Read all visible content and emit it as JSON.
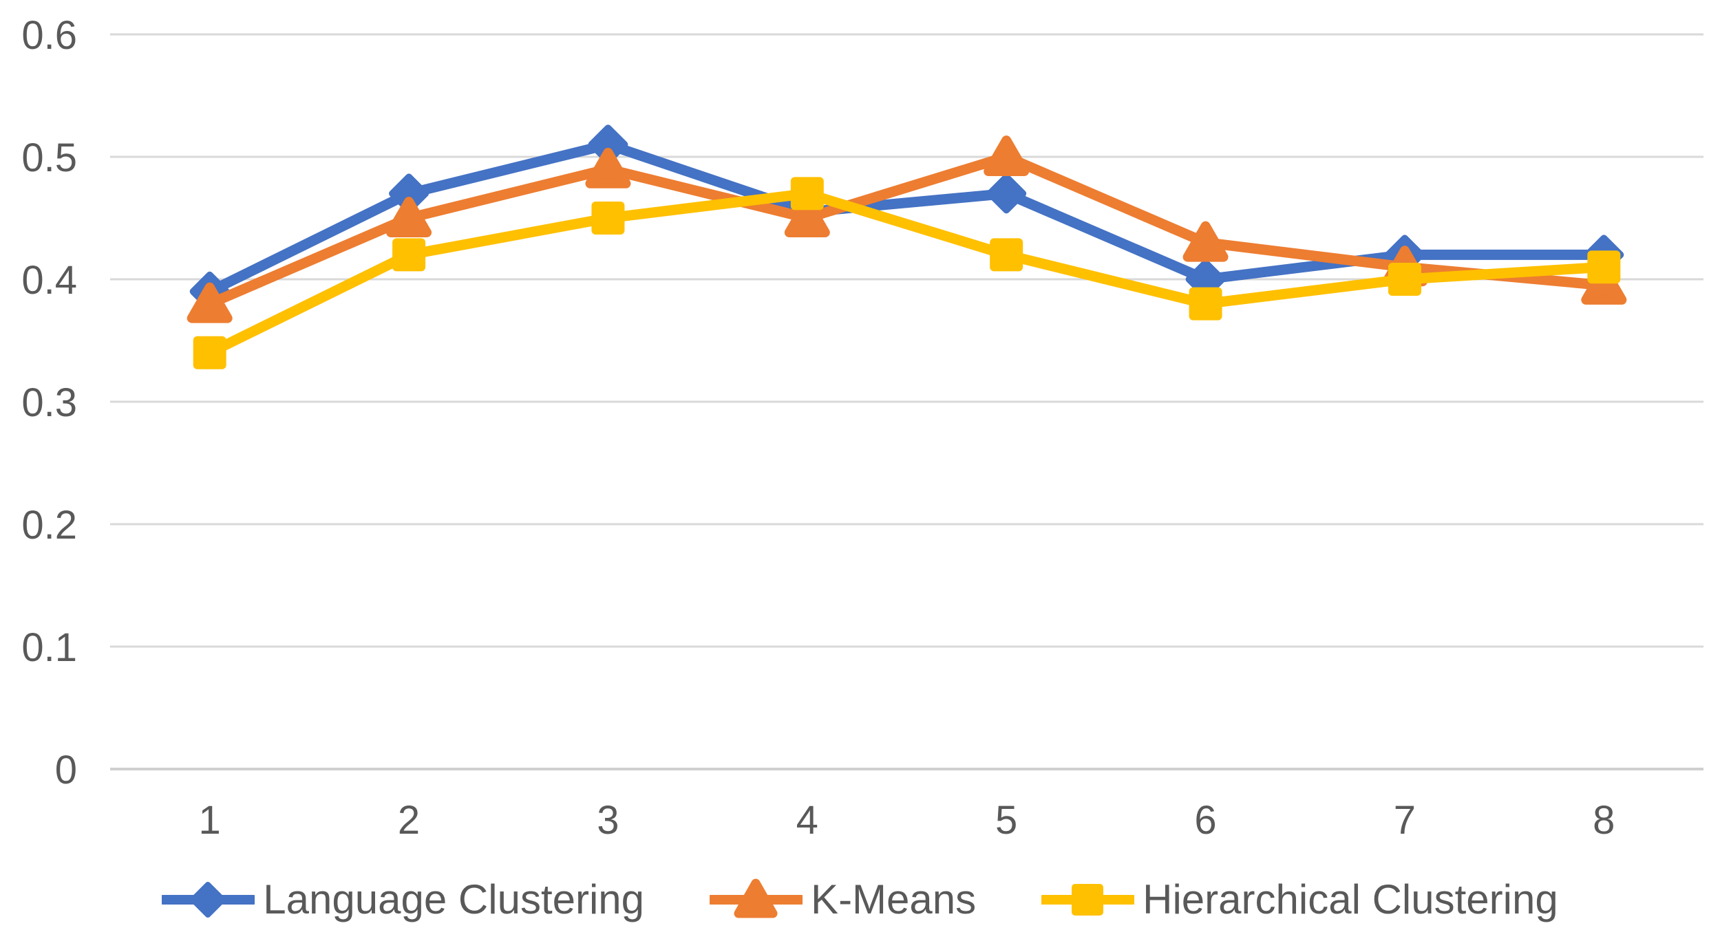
{
  "chart_data": {
    "type": "line",
    "title": "",
    "xlabel": "",
    "ylabel": "",
    "x_categories": [
      "1",
      "2",
      "3",
      "4",
      "5",
      "6",
      "7",
      "8"
    ],
    "y_ticks": [
      "0.6",
      "0.5",
      "0.4",
      "0.3",
      "0.2",
      "0.1",
      "0"
    ],
    "ylim": [
      0,
      0.6
    ],
    "grid": true,
    "legend_position": "bottom",
    "axis_text_color": "#595959",
    "gridline_color": "#D9D9D9",
    "zero_line_color": "#CFCFCF",
    "background_color": "#FFFFFF",
    "series": [
      {
        "name": "Language Clustering",
        "color": "#4472C4",
        "marker": "diamond-icon",
        "values": [
          0.39,
          0.47,
          0.51,
          0.455,
          0.47,
          0.4,
          0.42,
          0.42
        ]
      },
      {
        "name": "K-Means",
        "color": "#ED7D31",
        "marker": "triangle-icon",
        "values": [
          0.38,
          0.45,
          0.49,
          0.45,
          0.5,
          0.43,
          0.41,
          0.395
        ]
      },
      {
        "name": "Hierarchical Clustering",
        "color": "#FFC000",
        "marker": "square-icon",
        "values": [
          0.34,
          0.42,
          0.45,
          0.47,
          0.42,
          0.38,
          0.4,
          0.41
        ]
      }
    ]
  }
}
